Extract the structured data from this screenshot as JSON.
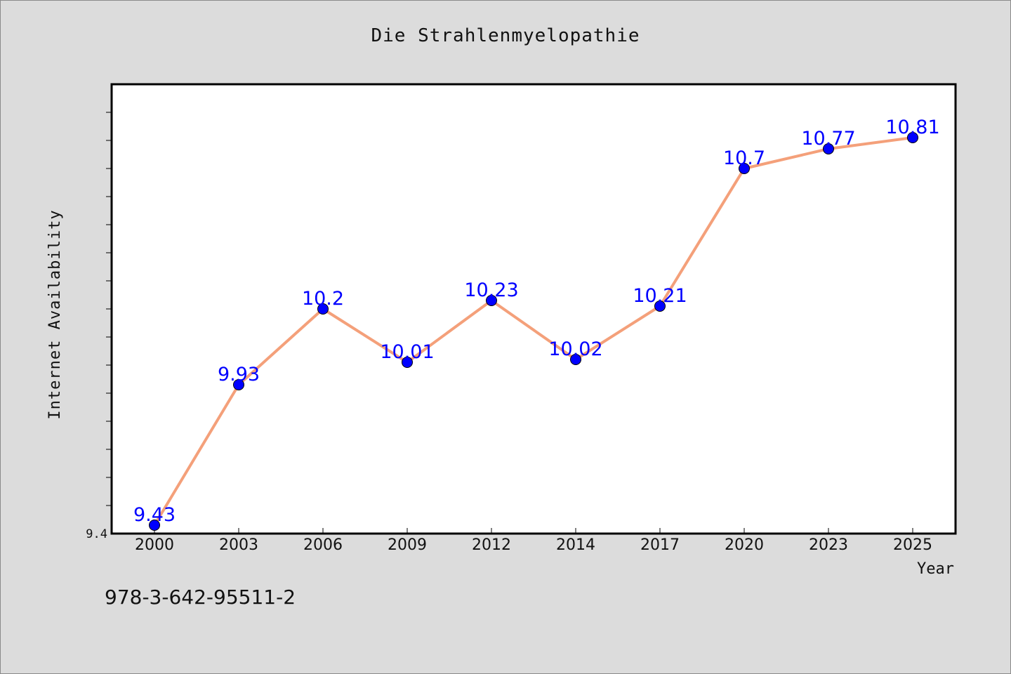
{
  "chart_data": {
    "type": "line",
    "title": "Die Strahlenmyelopathie",
    "xlabel": "Year",
    "ylabel": "Internet Availability",
    "categories": [
      "2000",
      "2003",
      "2006",
      "2009",
      "2012",
      "2014",
      "2017",
      "2020",
      "2023",
      "2025"
    ],
    "series": [
      {
        "values": [
          9.43,
          9.93,
          10.2,
          10.01,
          10.23,
          10.02,
          10.21,
          10.7,
          10.77,
          10.81
        ]
      }
    ],
    "data_labels": [
      "9.43",
      "9.93",
      "10.2",
      "10.01",
      "10.23",
      "10.02",
      "10.21",
      "10.7",
      "10.77",
      "10.81"
    ],
    "ylim": [
      9.4,
      11.0
    ],
    "y_tick_labels": [
      "9.4"
    ],
    "legend": "none",
    "grid": false,
    "colors": {
      "line": "#f4a07a",
      "marker": "#0000ff",
      "data_label": "#0000ff",
      "background": "#dcdcdc",
      "plot_area": "#ffffff"
    }
  },
  "footer": {
    "text": "978-3-642-95511-2"
  }
}
